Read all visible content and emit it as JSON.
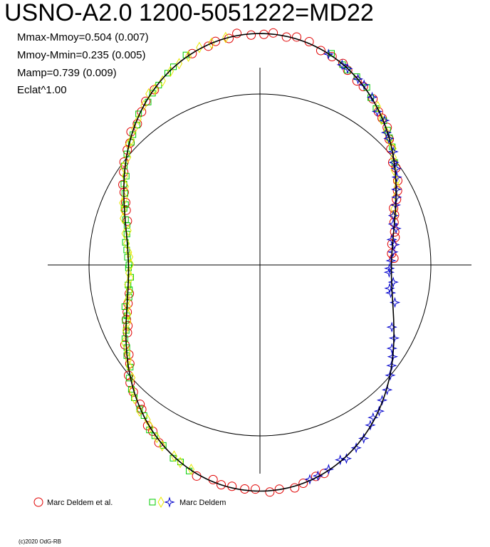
{
  "title": "USNO-A2.0 1200-5051222=MD22",
  "stats": [
    "Mmax-Mmoy=0.504 (0.007)",
    "Mmoy-Mmin=0.235 (0.005)",
    "Mamp=0.739 (0.009)",
    "Eclat^1.00"
  ],
  "legend": [
    {
      "label": "Marc Deldem et al.",
      "markers": [
        "circle"
      ],
      "colors": [
        "#e00000"
      ]
    },
    {
      "label": "Marc Deldem",
      "markers": [
        "square",
        "diamond",
        "star"
      ],
      "colors": [
        "#00cc00",
        "#e8e800",
        "#0000cc"
      ]
    }
  ],
  "copyright": "(c)2020 OdG-RB",
  "chart_data": {
    "type": "scatter",
    "projection": "polar",
    "reference_radius": 1.0,
    "curve": {
      "harmonics": {
        "mean": 1.37,
        "cos2": 0.37,
        "cos1": 0.02
      },
      "color": "#000000"
    },
    "series": [
      {
        "name": "Marc Deldem et al.",
        "marker": "circle",
        "color": "#e00000",
        "phase_ranges": [
          [
            0.45,
            0.55
          ],
          [
            0.95,
            1.0
          ],
          [
            0.0,
            0.25
          ],
          [
            0.58,
            0.72
          ],
          [
            0.8,
            0.92
          ]
        ]
      },
      {
        "name": "Marc Deldem",
        "marker": "square",
        "color": "#00cc00",
        "phase_ranges": [
          [
            0.55,
            0.95
          ],
          [
            0.05,
            0.15
          ]
        ]
      },
      {
        "name": "Marc Deldem",
        "marker": "diamond",
        "color": "#e8e800",
        "phase_ranges": [
          [
            0.55,
            0.98
          ],
          [
            0.1,
            0.2
          ]
        ]
      },
      {
        "name": "Marc Deldem",
        "marker": "star",
        "color": "#0000cc",
        "phase_ranges": [
          [
            0.05,
            0.3
          ],
          [
            0.32,
            0.47
          ]
        ]
      }
    ]
  }
}
